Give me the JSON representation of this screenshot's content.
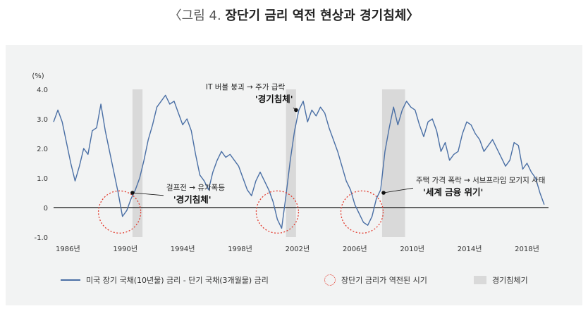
{
  "figure": {
    "prefix": "〈그림 4.",
    "title": "장단기 금리 역전 현상과 경기침체〉"
  },
  "chart_data": {
    "type": "line",
    "ylabel": "(%)",
    "ylim": [
      -1.0,
      4.0
    ],
    "xlim": [
      1985,
      2019.5
    ],
    "y_ticks": [
      "4.0",
      "3.0",
      "2.0",
      "1.0",
      "0",
      "-1.0"
    ],
    "y_tick_values": [
      4.0,
      3.0,
      2.0,
      1.0,
      0,
      -1.0
    ],
    "x_ticks": [
      "1986년",
      "1990년",
      "1994년",
      "1998년",
      "2002년",
      "2006년",
      "2010년",
      "2014년",
      "2018년"
    ],
    "x_tick_values": [
      1986,
      1990,
      1994,
      1998,
      2002,
      2006,
      2010,
      2014,
      2018
    ],
    "recessions": [
      [
        1990.5,
        1991.2
      ],
      [
        2001.2,
        2001.9
      ],
      [
        2007.9,
        2009.5
      ]
    ],
    "inversions": [
      1989.6,
      2000.6,
      2006.5
    ],
    "series": [
      {
        "name": "미국 장기 국채(10년물) 금리 - 단기 국채(3개월물) 금리",
        "color": "#4a6fa5",
        "x": [
          1985.0,
          1985.3,
          1985.6,
          1985.9,
          1986.2,
          1986.5,
          1986.8,
          1987.1,
          1987.4,
          1987.7,
          1988.0,
          1988.3,
          1988.6,
          1988.9,
          1989.2,
          1989.5,
          1989.8,
          1990.1,
          1990.4,
          1990.7,
          1991.0,
          1991.3,
          1991.6,
          1991.9,
          1992.2,
          1992.5,
          1992.8,
          1993.1,
          1993.4,
          1993.7,
          1994.0,
          1994.3,
          1994.6,
          1994.9,
          1995.2,
          1995.5,
          1995.8,
          1996.1,
          1996.4,
          1996.7,
          1997.0,
          1997.3,
          1997.6,
          1997.9,
          1998.2,
          1998.5,
          1998.8,
          1999.1,
          1999.4,
          1999.7,
          2000.0,
          2000.3,
          2000.6,
          2000.9,
          2001.2,
          2001.5,
          2001.8,
          2002.1,
          2002.4,
          2002.7,
          2003.0,
          2003.3,
          2003.6,
          2003.9,
          2004.2,
          2004.5,
          2004.8,
          2005.1,
          2005.4,
          2005.7,
          2006.0,
          2006.3,
          2006.6,
          2006.9,
          2007.2,
          2007.5,
          2007.8,
          2008.1,
          2008.4,
          2008.7,
          2009.0,
          2009.3,
          2009.6,
          2009.9,
          2010.2,
          2010.5,
          2010.8,
          2011.1,
          2011.4,
          2011.7,
          2012.0,
          2012.3,
          2012.6,
          2012.9,
          2013.2,
          2013.5,
          2013.8,
          2014.1,
          2014.4,
          2014.7,
          2015.0,
          2015.3,
          2015.6,
          2015.9,
          2016.2,
          2016.5,
          2016.8,
          2017.1,
          2017.4,
          2017.7,
          2018.0,
          2018.3,
          2018.6,
          2018.9,
          2019.2
        ],
        "values": [
          2.9,
          3.3,
          2.9,
          2.2,
          1.5,
          0.9,
          1.4,
          2.0,
          1.8,
          2.6,
          2.7,
          3.5,
          2.6,
          1.9,
          1.2,
          0.5,
          -0.3,
          -0.1,
          0.3,
          0.6,
          1.0,
          1.6,
          2.3,
          2.8,
          3.4,
          3.6,
          3.8,
          3.5,
          3.6,
          3.2,
          2.8,
          3.0,
          2.6,
          1.8,
          1.1,
          0.9,
          0.6,
          1.2,
          1.6,
          1.9,
          1.7,
          1.8,
          1.6,
          1.4,
          1.0,
          0.6,
          0.4,
          0.9,
          1.2,
          0.9,
          0.6,
          0.2,
          -0.4,
          -0.7,
          0.4,
          1.6,
          2.6,
          3.3,
          3.6,
          2.9,
          3.3,
          3.1,
          3.4,
          3.2,
          2.7,
          2.3,
          1.9,
          1.4,
          0.9,
          0.6,
          0.1,
          -0.2,
          -0.5,
          -0.6,
          -0.3,
          0.3,
          0.6,
          1.9,
          2.7,
          3.4,
          2.8,
          3.3,
          3.6,
          3.4,
          3.3,
          2.8,
          2.4,
          2.9,
          3.0,
          2.6,
          1.9,
          2.2,
          1.6,
          1.8,
          1.9,
          2.5,
          2.9,
          2.8,
          2.5,
          2.3,
          1.9,
          2.1,
          2.3,
          2.0,
          1.7,
          1.4,
          1.6,
          2.2,
          2.1,
          1.3,
          1.5,
          1.2,
          1.0,
          0.5,
          0.1
        ]
      }
    ],
    "annotations": [
      {
        "text": "걸프전 → 유가폭등",
        "sub": "'경기침체'",
        "x": 1990.5,
        "y": 0.5
      },
      {
        "text": "IT 버블 붕괴 → 주가 급락",
        "sub": "'경기침체'",
        "x": 2001.9,
        "y": 3.3
      },
      {
        "text": "주택 가격 폭락 → 서브프라임 모기지 사태",
        "sub": "'세계 금융 위기'",
        "x": 2008.0,
        "y": 0.5
      }
    ]
  },
  "legend": {
    "line_label": "미국 장기 국채(10년물) 금리 - 단기 국채(3개월물) 금리",
    "inversion_label": "장단기 금리가 역전된 시기",
    "recession_label": "경기침체기"
  }
}
